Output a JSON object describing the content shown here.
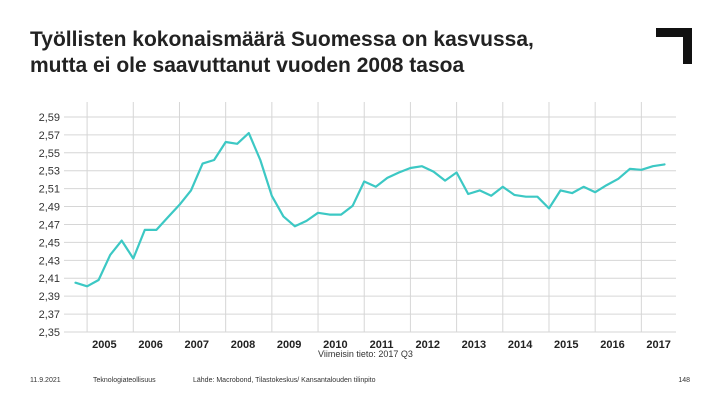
{
  "slide": {
    "title_lines": [
      "Työllisten kokonaismäärä Suomessa on kasvussa,",
      "mutta ei ole saavuttanut vuoden 2008 tasoa"
    ],
    "footer": {
      "date": "11.9.2021",
      "organization": "Teknologiateollisuus",
      "source": "Lähde: Macrobond, Tilastokeskus/ Kansantalouden tilinpito",
      "page_number": "148"
    }
  },
  "chart_data": {
    "type": "line",
    "title": "",
    "xlabel": "",
    "ylabel": "",
    "note": "Viimeisin tieto: 2017 Q3",
    "ylim": [
      2.35,
      2.6
    ],
    "xlim": [
      2004.5,
      2017.75
    ],
    "yticks": [
      "2,35",
      "2,37",
      "2,39",
      "2,41",
      "2,43",
      "2,45",
      "2,47",
      "2,49",
      "2,51",
      "2,53",
      "2,55",
      "2,57",
      "2,59"
    ],
    "ytick_values": [
      2.35,
      2.37,
      2.39,
      2.41,
      2.43,
      2.45,
      2.47,
      2.49,
      2.51,
      2.53,
      2.55,
      2.57,
      2.59
    ],
    "xticks": [
      "2005",
      "2006",
      "2007",
      "2008",
      "2009",
      "2010",
      "2011",
      "2012",
      "2013",
      "2014",
      "2015",
      "2016",
      "2017"
    ],
    "year_start_gridlines": [
      2005,
      2006,
      2007,
      2008,
      2009,
      2010,
      2011,
      2012,
      2013,
      2014,
      2015,
      2016,
      2017
    ],
    "grid": true,
    "line_color": "#3cc8c4",
    "series": [
      {
        "x": [
          2004.75,
          2005.0,
          2005.25,
          2005.5,
          2005.75,
          2006.0,
          2006.25,
          2006.5,
          2006.75,
          2007.0,
          2007.25,
          2007.5,
          2007.75,
          2008.0,
          2008.25,
          2008.5,
          2008.75,
          2009.0,
          2009.25,
          2009.5,
          2009.75,
          2010.0,
          2010.25,
          2010.5,
          2010.75,
          2011.0,
          2011.25,
          2011.5,
          2011.75,
          2012.0,
          2012.25,
          2012.5,
          2012.75,
          2013.0,
          2013.25,
          2013.5,
          2013.75,
          2014.0,
          2014.25,
          2014.5,
          2014.75,
          2015.0,
          2015.25,
          2015.5,
          2015.75,
          2016.0,
          2016.25,
          2016.5,
          2016.75,
          2017.0,
          2017.25,
          2017.5
        ],
        "values": [
          2.405,
          2.401,
          2.408,
          2.436,
          2.452,
          2.432,
          2.464,
          2.464,
          2.478,
          2.492,
          2.508,
          2.538,
          2.542,
          2.562,
          2.56,
          2.572,
          2.542,
          2.502,
          2.479,
          2.468,
          2.474,
          2.483,
          2.481,
          2.481,
          2.491,
          2.518,
          2.512,
          2.522,
          2.528,
          2.533,
          2.535,
          2.529,
          2.519,
          2.528,
          2.504,
          2.508,
          2.502,
          2.512,
          2.503,
          2.501,
          2.501,
          2.488,
          2.508,
          2.505,
          2.512,
          2.506,
          2.514,
          2.521,
          2.532,
          2.531,
          2.535,
          2.537
        ]
      }
    ]
  }
}
